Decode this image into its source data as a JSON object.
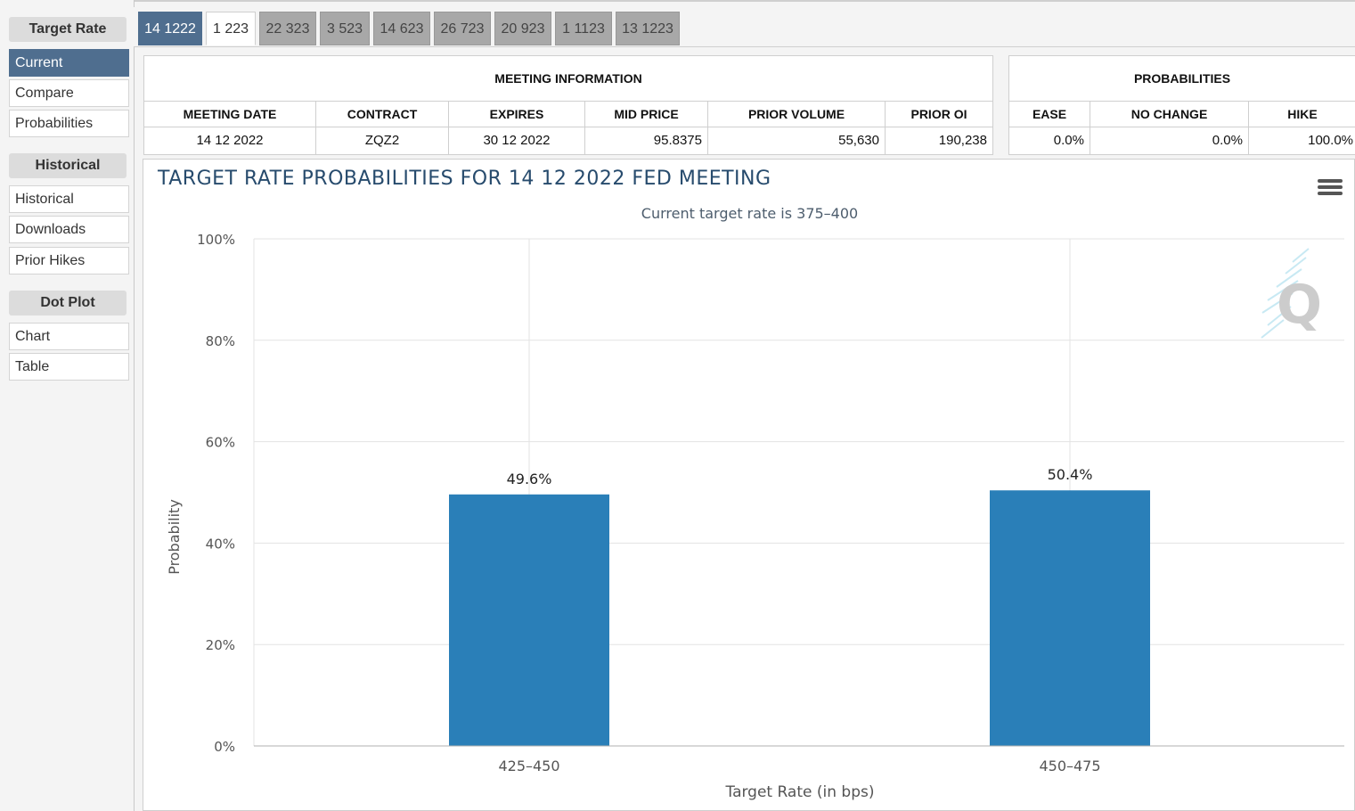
{
  "sidebar": {
    "sections": [
      {
        "title": "Target Rate",
        "items": [
          {
            "label": "Current",
            "active": true
          },
          {
            "label": "Compare",
            "active": false
          },
          {
            "label": "Probabilities",
            "active": false
          }
        ]
      },
      {
        "title": "Historical",
        "items": [
          {
            "label": "Historical",
            "active": false
          },
          {
            "label": "Downloads",
            "active": false
          },
          {
            "label": "Prior Hikes",
            "active": false
          }
        ]
      },
      {
        "title": "Dot Plot",
        "items": [
          {
            "label": "Chart",
            "active": false
          },
          {
            "label": "Table",
            "active": false
          }
        ]
      }
    ]
  },
  "tabs": [
    "14 1222",
    "1 223",
    "22 323",
    "3 523",
    "14 623",
    "26 723",
    "20 923",
    "1 1123",
    "13 1223"
  ],
  "meeting_info": {
    "title": "MEETING INFORMATION",
    "headers": [
      "MEETING DATE",
      "CONTRACT",
      "EXPIRES",
      "MID PRICE",
      "PRIOR VOLUME",
      "PRIOR OI"
    ],
    "values": [
      "14 12 2022",
      "ZQZ2",
      "30 12 2022",
      "95.8375",
      "55,630",
      "190,238"
    ]
  },
  "probabilities": {
    "title": "PROBABILITIES",
    "headers": [
      "EASE",
      "NO CHANGE",
      "HIKE"
    ],
    "values": [
      "0.0%",
      "0.0%",
      "100.0%"
    ]
  },
  "chart": {
    "title": "TARGET RATE PROBABILITIES FOR 14 12 2022 FED MEETING",
    "subtitle": "Current target rate is 375–400",
    "bar_color": "#2a7fb8"
  },
  "chart_data": {
    "type": "bar",
    "title": "TARGET RATE PROBABILITIES FOR 14 12 2022 FED MEETING",
    "subtitle": "Current target rate is 375–400",
    "categories": [
      "425–450",
      "450–475"
    ],
    "values": [
      49.6,
      50.4
    ],
    "data_labels": [
      "49.6%",
      "50.4%"
    ],
    "xlabel": "Target Rate (in bps)",
    "ylabel": "Probability",
    "ylim": [
      0,
      100
    ],
    "yticks": [
      "0%",
      "20%",
      "40%",
      "60%",
      "80%",
      "100%"
    ],
    "grid": true
  }
}
